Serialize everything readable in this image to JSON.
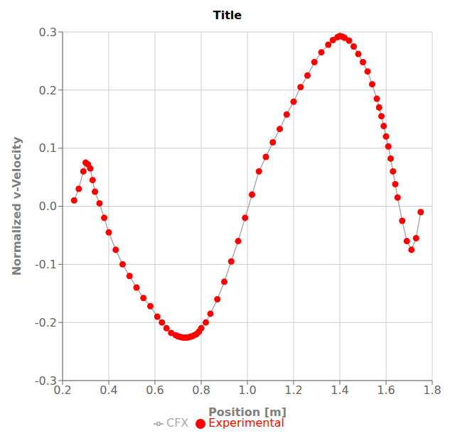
{
  "chart_data": {
    "type": "line",
    "title": "Title",
    "xlabel": "Position [m]",
    "ylabel": "Normalized v-Velocity",
    "xlim": [
      0.2,
      1.8
    ],
    "ylim": [
      -0.3,
      0.3
    ],
    "xticks": [
      0.2,
      0.4,
      0.6,
      0.8,
      {
        "value": 1.0,
        "label": "1.0"
      },
      1.2,
      1.4,
      1.6,
      1.8
    ],
    "yticks": [
      -0.3,
      -0.2,
      -0.1,
      {
        "value": 0.0,
        "label": "0.0"
      },
      0.1,
      0.2,
      0.3
    ],
    "grid": true,
    "legend": "bottom",
    "x": [
      0.25,
      0.27,
      0.29,
      0.3,
      0.31,
      0.32,
      0.33,
      0.34,
      0.36,
      0.38,
      0.4,
      0.43,
      0.46,
      0.49,
      0.52,
      0.55,
      0.58,
      0.61,
      0.63,
      0.65,
      0.67,
      0.69,
      0.7,
      0.71,
      0.72,
      0.73,
      0.74,
      0.75,
      0.76,
      0.77,
      0.78,
      0.79,
      0.8,
      0.82,
      0.84,
      0.87,
      0.9,
      0.93,
      0.96,
      0.99,
      1.02,
      1.05,
      1.08,
      1.11,
      1.14,
      1.17,
      1.2,
      1.23,
      1.26,
      1.29,
      1.32,
      1.35,
      1.37,
      1.39,
      1.4,
      1.41,
      1.42,
      1.44,
      1.46,
      1.48,
      1.5,
      1.52,
      1.54,
      1.56,
      1.57,
      1.58,
      1.59,
      1.6,
      1.61,
      1.62,
      1.63,
      1.64,
      1.65,
      1.67,
      1.69,
      1.71,
      1.73,
      1.75
    ],
    "series": [
      {
        "name": "CFX",
        "type": "line",
        "color": "#aaaaaa",
        "values": [
          0.01,
          0.03,
          0.06,
          0.075,
          0.072,
          0.065,
          0.045,
          0.025,
          0.005,
          -0.02,
          -0.045,
          -0.075,
          -0.1,
          -0.12,
          -0.14,
          -0.158,
          -0.172,
          -0.19,
          -0.2,
          -0.21,
          -0.218,
          -0.222,
          -0.224,
          -0.225,
          -0.226,
          -0.226,
          -0.226,
          -0.225,
          -0.224,
          -0.222,
          -0.22,
          -0.216,
          -0.21,
          -0.2,
          -0.185,
          -0.16,
          -0.13,
          -0.095,
          -0.06,
          -0.02,
          0.02,
          0.06,
          0.085,
          0.11,
          0.133,
          0.158,
          0.18,
          0.205,
          0.225,
          0.248,
          0.265,
          0.278,
          0.286,
          0.291,
          0.293,
          0.292,
          0.29,
          0.285,
          0.275,
          0.262,
          0.248,
          0.232,
          0.21,
          0.185,
          0.17,
          0.155,
          0.138,
          0.12,
          0.103,
          0.082,
          0.06,
          0.038,
          0.015,
          -0.025,
          -0.06,
          -0.075,
          -0.055,
          -0.01
        ]
      },
      {
        "name": "Experimental",
        "type": "scatter",
        "marker": "circle",
        "color": "#ff0000",
        "values": [
          0.01,
          0.03,
          0.06,
          0.075,
          0.072,
          0.065,
          0.045,
          0.025,
          0.005,
          -0.02,
          -0.045,
          -0.075,
          -0.1,
          -0.12,
          -0.14,
          -0.158,
          -0.172,
          -0.19,
          -0.2,
          -0.21,
          -0.218,
          -0.222,
          -0.224,
          -0.225,
          -0.226,
          -0.226,
          -0.226,
          -0.225,
          -0.224,
          -0.222,
          -0.22,
          -0.216,
          -0.21,
          -0.2,
          -0.185,
          -0.16,
          -0.13,
          -0.095,
          -0.06,
          -0.02,
          0.02,
          0.06,
          0.085,
          0.11,
          0.133,
          0.158,
          0.18,
          0.205,
          0.225,
          0.248,
          0.265,
          0.278,
          0.286,
          0.291,
          0.293,
          0.292,
          0.29,
          0.285,
          0.275,
          0.262,
          0.248,
          0.232,
          0.21,
          0.185,
          0.17,
          0.155,
          0.138,
          0.12,
          0.103,
          0.082,
          0.06,
          0.038,
          0.015,
          -0.025,
          -0.06,
          -0.075,
          -0.055,
          -0.01
        ]
      }
    ]
  }
}
